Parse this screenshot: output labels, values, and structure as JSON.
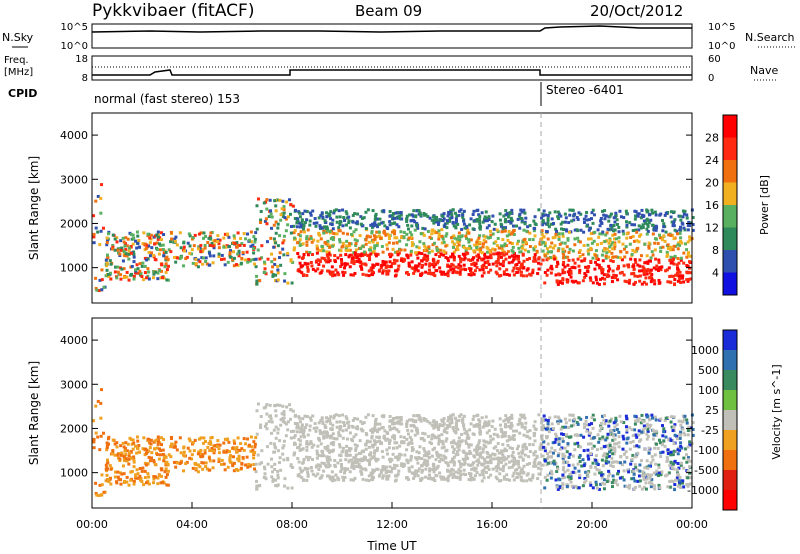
{
  "header": {
    "station": "Pykkvibaer (fitACF)",
    "beam": "Beam 09",
    "date": "20/Oct/2012"
  },
  "nsky_panel": {
    "left_label": "N.Sky",
    "right_label": "N.Search",
    "left_ticks": [
      "10^5",
      "10^0"
    ],
    "right_ticks": [
      "10^5",
      "10^0"
    ]
  },
  "freq_panel": {
    "left_label_1": "Freq.",
    "left_label_2": "[MHz]",
    "right_label": "Nave",
    "left_ticks": [
      "18",
      "8"
    ],
    "right_ticks": [
      "60",
      "0"
    ]
  },
  "cpid": {
    "label": "CPID",
    "mode_1": "normal (fast stereo) 153",
    "mode_2": "Stereo -6401"
  },
  "colors": {
    "power_scale": [
      "#1010e0",
      "#3050b0",
      "#2e8a5a",
      "#58b060",
      "#f0b020",
      "#f07010",
      "#ff2a10",
      "#ff0000"
    ],
    "velocity_scale": [
      "#1a2bd8",
      "#2f70b0",
      "#3a8a60",
      "#70c040",
      "#c0c0b8",
      "#f0a020",
      "#f07010",
      "#e02010",
      "#ff0000"
    ]
  },
  "chart_data": [
    {
      "type": "heatmap",
      "quantity": "Power",
      "ylabel": "Slant Range [km]",
      "xlim_hours": [
        0,
        24
      ],
      "ylim_km": [
        200,
        4500
      ],
      "y_ticks": [
        "1000",
        "2000",
        "3000",
        "4000"
      ],
      "colorbar_label": "Power [dB]",
      "colorbar_ticks": [
        "4",
        "8",
        "12",
        "16",
        "20",
        "24",
        "28"
      ],
      "colorbar_range": [
        0,
        32
      ]
    },
    {
      "type": "heatmap",
      "quantity": "Velocity",
      "ylabel": "Slant Range [km]",
      "xlim_hours": [
        0,
        24
      ],
      "ylim_km": [
        200,
        4500
      ],
      "y_ticks": [
        "1000",
        "2000",
        "3000",
        "4000"
      ],
      "colorbar_label": "Velocity [m s^-1]",
      "colorbar_ticks": [
        "1000",
        "500",
        "100",
        "25",
        "-25",
        "-100",
        "-500",
        "-1000"
      ],
      "x_ticks": [
        "00:00",
        "04:00",
        "08:00",
        "12:00",
        "16:00",
        "20:00",
        "00:00"
      ],
      "xlabel": "Time UT"
    }
  ]
}
